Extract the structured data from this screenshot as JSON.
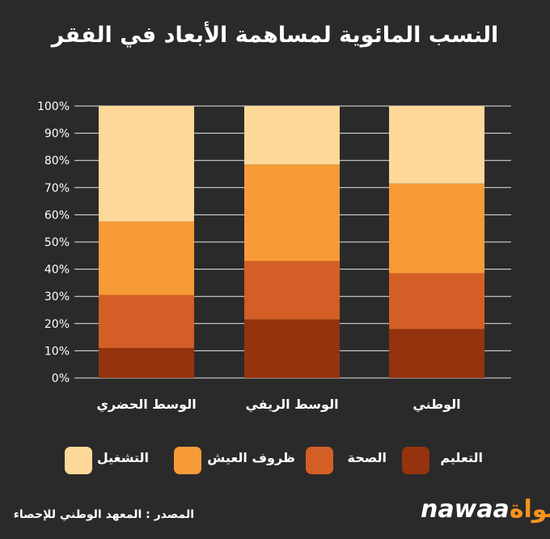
{
  "title": "النسب المائوية لمساهمة الأبعاد في الفقر",
  "chart_data": {
    "type": "bar",
    "stacked": true,
    "categories": [
      "الوسط الحضري",
      "الوسط الريفي",
      "الوطني"
    ],
    "series": [
      {
        "name": "التعليم",
        "color": "#95330f",
        "values": [
          11,
          21.5,
          18
        ]
      },
      {
        "name": "الصحة",
        "color": "#d45f26",
        "values": [
          19.5,
          21.5,
          20.5
        ]
      },
      {
        "name": "ظروف العيش",
        "color": "#f79b37",
        "values": [
          27,
          35.5,
          33
        ]
      },
      {
        "name": "التشغيل",
        "color": "#fdd899",
        "values": [
          42.5,
          21.5,
          28.5
        ]
      }
    ],
    "yticks": [
      "0%",
      "10%",
      "20%",
      "30%",
      "40%",
      "50%",
      "60%",
      "70%",
      "80%",
      "90%",
      "100%"
    ],
    "ylim": [
      0,
      100
    ],
    "grid": true,
    "legend_position": "bottom"
  },
  "legend": [
    {
      "label": "التشغيل",
      "color": "#fdd899"
    },
    {
      "label": "ظروف العيش",
      "color": "#f79b37"
    },
    {
      "label": "الصحة",
      "color": "#d45f26"
    },
    {
      "label": "التعليم",
      "color": "#95330f"
    }
  ],
  "footer": {
    "source": "المصدر : المعهد الوطني للإحصاء",
    "logo_latin": "nawaa",
    "logo_arabic": "نواة"
  }
}
